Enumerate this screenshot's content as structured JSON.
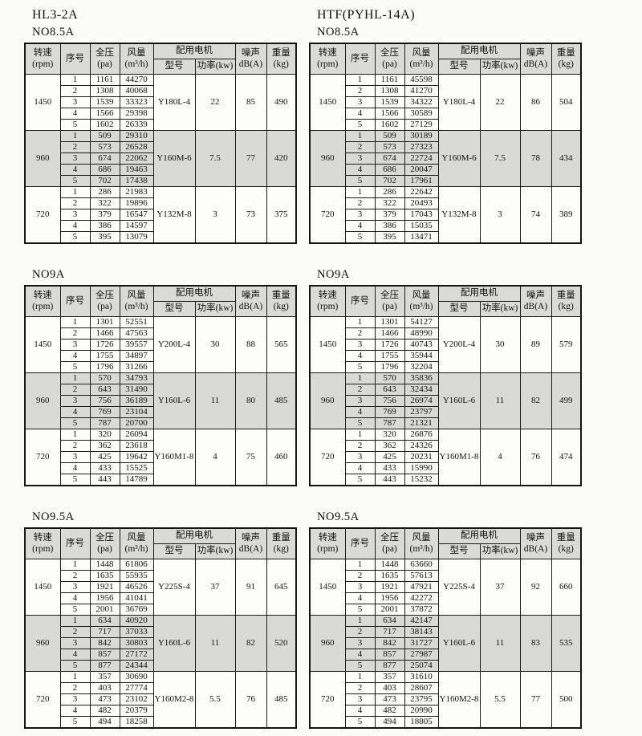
{
  "colors": {
    "page_bg": "#fbfbf9",
    "header_bg": "#dadad8",
    "shaded_row_bg": "#d9d9d7",
    "border": "#1b1b1b",
    "text": "#111111"
  },
  "header": {
    "speed_line1": "转速",
    "speed_line2": "(rpm)",
    "serial": "序号",
    "pressure_line1": "全压",
    "pressure_line2": "(pa)",
    "flow_line1": "风量",
    "flow_line2": "(m³/h)",
    "motor_group": "配用电机",
    "motor_model": "型号",
    "motor_power": "功率(kw)",
    "noise_line1": "噪声",
    "noise_line2": "dB(A)",
    "weight_line1": "重量",
    "weight_line2": "(kg)"
  },
  "columns": [
    {
      "title": "HL3-2A",
      "tables": [
        {
          "size": "NO8.5A",
          "groups": [
            {
              "rpm": "1450",
              "shaded": false,
              "motor": "Y180L-4",
              "power": "22",
              "noise": "85",
              "weight": "490",
              "rows": [
                [
                  "1",
                  "1161",
                  "44270"
                ],
                [
                  "2",
                  "1308",
                  "40068"
                ],
                [
                  "3",
                  "1539",
                  "33323"
                ],
                [
                  "4",
                  "1566",
                  "29398"
                ],
                [
                  "5",
                  "1602",
                  "26339"
                ]
              ]
            },
            {
              "rpm": "960",
              "shaded": true,
              "motor": "Y160M-6",
              "power": "7.5",
              "noise": "77",
              "weight": "420",
              "rows": [
                [
                  "1",
                  "509",
                  "29310"
                ],
                [
                  "2",
                  "573",
                  "26528"
                ],
                [
                  "3",
                  "674",
                  "22062"
                ],
                [
                  "4",
                  "686",
                  "19463"
                ],
                [
                  "5",
                  "702",
                  "17438"
                ]
              ]
            },
            {
              "rpm": "720",
              "shaded": false,
              "motor": "Y132M-8",
              "power": "3",
              "noise": "73",
              "weight": "375",
              "rows": [
                [
                  "1",
                  "286",
                  "21983"
                ],
                [
                  "2",
                  "322",
                  "19896"
                ],
                [
                  "3",
                  "379",
                  "16547"
                ],
                [
                  "4",
                  "386",
                  "14597"
                ],
                [
                  "5",
                  "395",
                  "13079"
                ]
              ]
            }
          ]
        },
        {
          "size": "NO9A",
          "groups": [
            {
              "rpm": "1450",
              "shaded": false,
              "motor": "Y200L-4",
              "power": "30",
              "noise": "88",
              "weight": "565",
              "rows": [
                [
                  "1",
                  "1301",
                  "52551"
                ],
                [
                  "2",
                  "1466",
                  "47563"
                ],
                [
                  "3",
                  "1726",
                  "39557"
                ],
                [
                  "4",
                  "1755",
                  "34897"
                ],
                [
                  "5",
                  "1796",
                  "31266"
                ]
              ]
            },
            {
              "rpm": "960",
              "shaded": true,
              "motor": "Y160L-6",
              "power": "11",
              "noise": "80",
              "weight": "485",
              "rows": [
                [
                  "1",
                  "570",
                  "34793"
                ],
                [
                  "2",
                  "643",
                  "31490"
                ],
                [
                  "3",
                  "756",
                  "36189"
                ],
                [
                  "4",
                  "769",
                  "23104"
                ],
                [
                  "5",
                  "787",
                  "20700"
                ]
              ]
            },
            {
              "rpm": "720",
              "shaded": false,
              "motor": "Y160M1-8",
              "power": "4",
              "noise": "75",
              "weight": "460",
              "rows": [
                [
                  "1",
                  "320",
                  "26094"
                ],
                [
                  "2",
                  "362",
                  "23618"
                ],
                [
                  "3",
                  "425",
                  "19642"
                ],
                [
                  "4",
                  "433",
                  "15525"
                ],
                [
                  "5",
                  "443",
                  "14789"
                ]
              ]
            }
          ]
        },
        {
          "size": "NO9.5A",
          "groups": [
            {
              "rpm": "1450",
              "shaded": false,
              "motor": "Y225S-4",
              "power": "37",
              "noise": "91",
              "weight": "645",
              "rows": [
                [
                  "1",
                  "1448",
                  "61806"
                ],
                [
                  "2",
                  "1635",
                  "55935"
                ],
                [
                  "3",
                  "1921",
                  "46526"
                ],
                [
                  "4",
                  "1956",
                  "41041"
                ],
                [
                  "5",
                  "2001",
                  "36769"
                ]
              ]
            },
            {
              "rpm": "960",
              "shaded": true,
              "motor": "Y160L-6",
              "power": "11",
              "noise": "82",
              "weight": "520",
              "rows": [
                [
                  "1",
                  "634",
                  "40920"
                ],
                [
                  "2",
                  "717",
                  "37033"
                ],
                [
                  "3",
                  "842",
                  "30803"
                ],
                [
                  "4",
                  "857",
                  "27172"
                ],
                [
                  "5",
                  "877",
                  "24344"
                ]
              ]
            },
            {
              "rpm": "720",
              "shaded": false,
              "motor": "Y160M2-8",
              "power": "5.5",
              "noise": "76",
              "weight": "485",
              "rows": [
                [
                  "1",
                  "357",
                  "30690"
                ],
                [
                  "2",
                  "403",
                  "27774"
                ],
                [
                  "3",
                  "473",
                  "23102"
                ],
                [
                  "4",
                  "482",
                  "20379"
                ],
                [
                  "5",
                  "494",
                  "18258"
                ]
              ]
            }
          ]
        }
      ]
    },
    {
      "title": "HTF(PYHL-14A)",
      "tables": [
        {
          "size": "NO8.5A",
          "groups": [
            {
              "rpm": "1450",
              "shaded": false,
              "motor": "Y180L-4",
              "power": "22",
              "noise": "86",
              "weight": "504",
              "rows": [
                [
                  "1",
                  "1161",
                  "45598"
                ],
                [
                  "2",
                  "1308",
                  "41270"
                ],
                [
                  "3",
                  "1539",
                  "34322"
                ],
                [
                  "4",
                  "1566",
                  "30589"
                ],
                [
                  "5",
                  "1602",
                  "27129"
                ]
              ]
            },
            {
              "rpm": "960",
              "shaded": true,
              "motor": "Y160M-6",
              "power": "7.5",
              "noise": "78",
              "weight": "434",
              "rows": [
                [
                  "1",
                  "509",
                  "30189"
                ],
                [
                  "2",
                  "573",
                  "27323"
                ],
                [
                  "3",
                  "674",
                  "22724"
                ],
                [
                  "4",
                  "686",
                  "20047"
                ],
                [
                  "5",
                  "702",
                  "17961"
                ]
              ]
            },
            {
              "rpm": "720",
              "shaded": false,
              "motor": "Y132M-8",
              "power": "3",
              "noise": "74",
              "weight": "389",
              "rows": [
                [
                  "1",
                  "286",
                  "22642"
                ],
                [
                  "2",
                  "322",
                  "20493"
                ],
                [
                  "3",
                  "379",
                  "17043"
                ],
                [
                  "4",
                  "386",
                  "15035"
                ],
                [
                  "5",
                  "395",
                  "13471"
                ]
              ]
            }
          ]
        },
        {
          "size": "NO9A",
          "groups": [
            {
              "rpm": "1450",
              "shaded": false,
              "motor": "Y200L-4",
              "power": "30",
              "noise": "89",
              "weight": "579",
              "rows": [
                [
                  "1",
                  "1301",
                  "54127"
                ],
                [
                  "2",
                  "1466",
                  "48990"
                ],
                [
                  "3",
                  "1726",
                  "40743"
                ],
                [
                  "4",
                  "1755",
                  "35944"
                ],
                [
                  "5",
                  "1796",
                  "32204"
                ]
              ]
            },
            {
              "rpm": "960",
              "shaded": true,
              "motor": "Y160L-6",
              "power": "11",
              "noise": "82",
              "weight": "499",
              "rows": [
                [
                  "1",
                  "570",
                  "35836"
                ],
                [
                  "2",
                  "643",
                  "32434"
                ],
                [
                  "3",
                  "756",
                  "26974"
                ],
                [
                  "4",
                  "769",
                  "23797"
                ],
                [
                  "5",
                  "787",
                  "21321"
                ]
              ]
            },
            {
              "rpm": "720",
              "shaded": false,
              "motor": "Y160M1-8",
              "power": "4",
              "noise": "76",
              "weight": "474",
              "rows": [
                [
                  "1",
                  "320",
                  "26876"
                ],
                [
                  "2",
                  "362",
                  "24326"
                ],
                [
                  "3",
                  "425",
                  "20231"
                ],
                [
                  "4",
                  "433",
                  "15990"
                ],
                [
                  "5",
                  "443",
                  "15232"
                ]
              ]
            }
          ]
        },
        {
          "size": "NO9.5A",
          "groups": [
            {
              "rpm": "1450",
              "shaded": false,
              "motor": "Y225S-4",
              "power": "37",
              "noise": "92",
              "weight": "660",
              "rows": [
                [
                  "1",
                  "1448",
                  "63660"
                ],
                [
                  "2",
                  "1635",
                  "57613"
                ],
                [
                  "3",
                  "1921",
                  "47921"
                ],
                [
                  "4",
                  "1956",
                  "42272"
                ],
                [
                  "5",
                  "2001",
                  "37872"
                ]
              ]
            },
            {
              "rpm": "960",
              "shaded": true,
              "motor": "Y160L-6",
              "power": "11",
              "noise": "83",
              "weight": "535",
              "rows": [
                [
                  "1",
                  "634",
                  "42147"
                ],
                [
                  "2",
                  "717",
                  "38143"
                ],
                [
                  "3",
                  "842",
                  "31727"
                ],
                [
                  "4",
                  "857",
                  "27987"
                ],
                [
                  "5",
                  "877",
                  "25074"
                ]
              ]
            },
            {
              "rpm": "720",
              "shaded": false,
              "motor": "Y160M2-8",
              "power": "5.5",
              "noise": "77",
              "weight": "500",
              "rows": [
                [
                  "1",
                  "357",
                  "31610"
                ],
                [
                  "2",
                  "403",
                  "28607"
                ],
                [
                  "3",
                  "473",
                  "23795"
                ],
                [
                  "4",
                  "482",
                  "20990"
                ],
                [
                  "5",
                  "494",
                  "18805"
                ]
              ]
            }
          ]
        }
      ]
    }
  ]
}
